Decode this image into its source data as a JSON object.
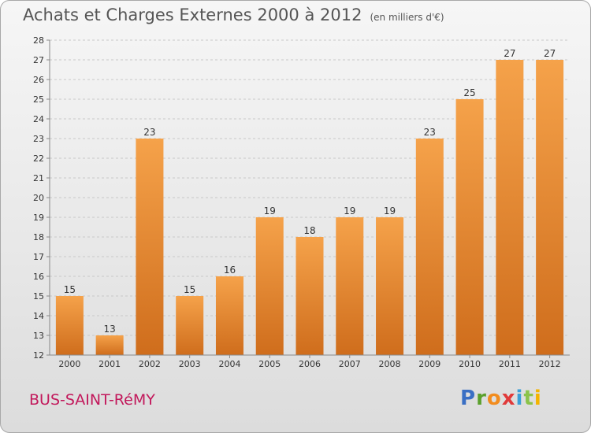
{
  "title": "Achats et Charges Externes 2000 à 2012",
  "unit_note": "(en milliers d'€)",
  "place_name": "BUS-SAINT-RéMY",
  "logo": {
    "letters": [
      "P",
      "r",
      "o",
      "x",
      "i",
      "t",
      "i"
    ]
  },
  "colors": {
    "bar_light": "#f5a24a",
    "bar_dark": "#cf6d1c",
    "title": "#555555",
    "place": "#c2185b"
  },
  "chart_data": {
    "type": "bar",
    "categories": [
      "2000",
      "2001",
      "2002",
      "2003",
      "2004",
      "2005",
      "2006",
      "2007",
      "2008",
      "2009",
      "2010",
      "2011",
      "2012"
    ],
    "values": [
      15,
      13,
      23,
      15,
      16,
      19,
      18,
      19,
      19,
      23,
      25,
      27,
      27
    ],
    "ylim": [
      12,
      28
    ],
    "yticks": [
      12,
      13,
      14,
      15,
      16,
      17,
      18,
      19,
      20,
      21,
      22,
      23,
      24,
      25,
      26,
      27,
      28
    ],
    "grid": true
  }
}
